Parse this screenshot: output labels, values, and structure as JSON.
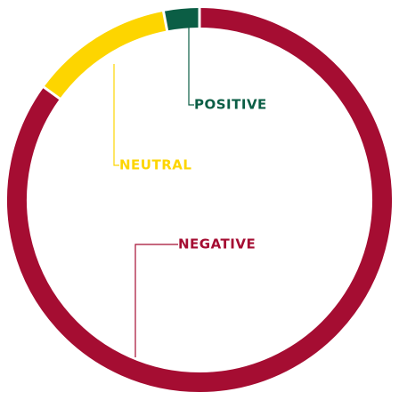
{
  "chart_data": {
    "type": "donut",
    "categories": [
      "POSITIVE",
      "NEUTRAL",
      "NEGATIVE"
    ],
    "values": [
      3,
      12,
      85
    ],
    "colors": [
      "#0b5e45",
      "#fdd500",
      "#a50d32"
    ]
  }
}
